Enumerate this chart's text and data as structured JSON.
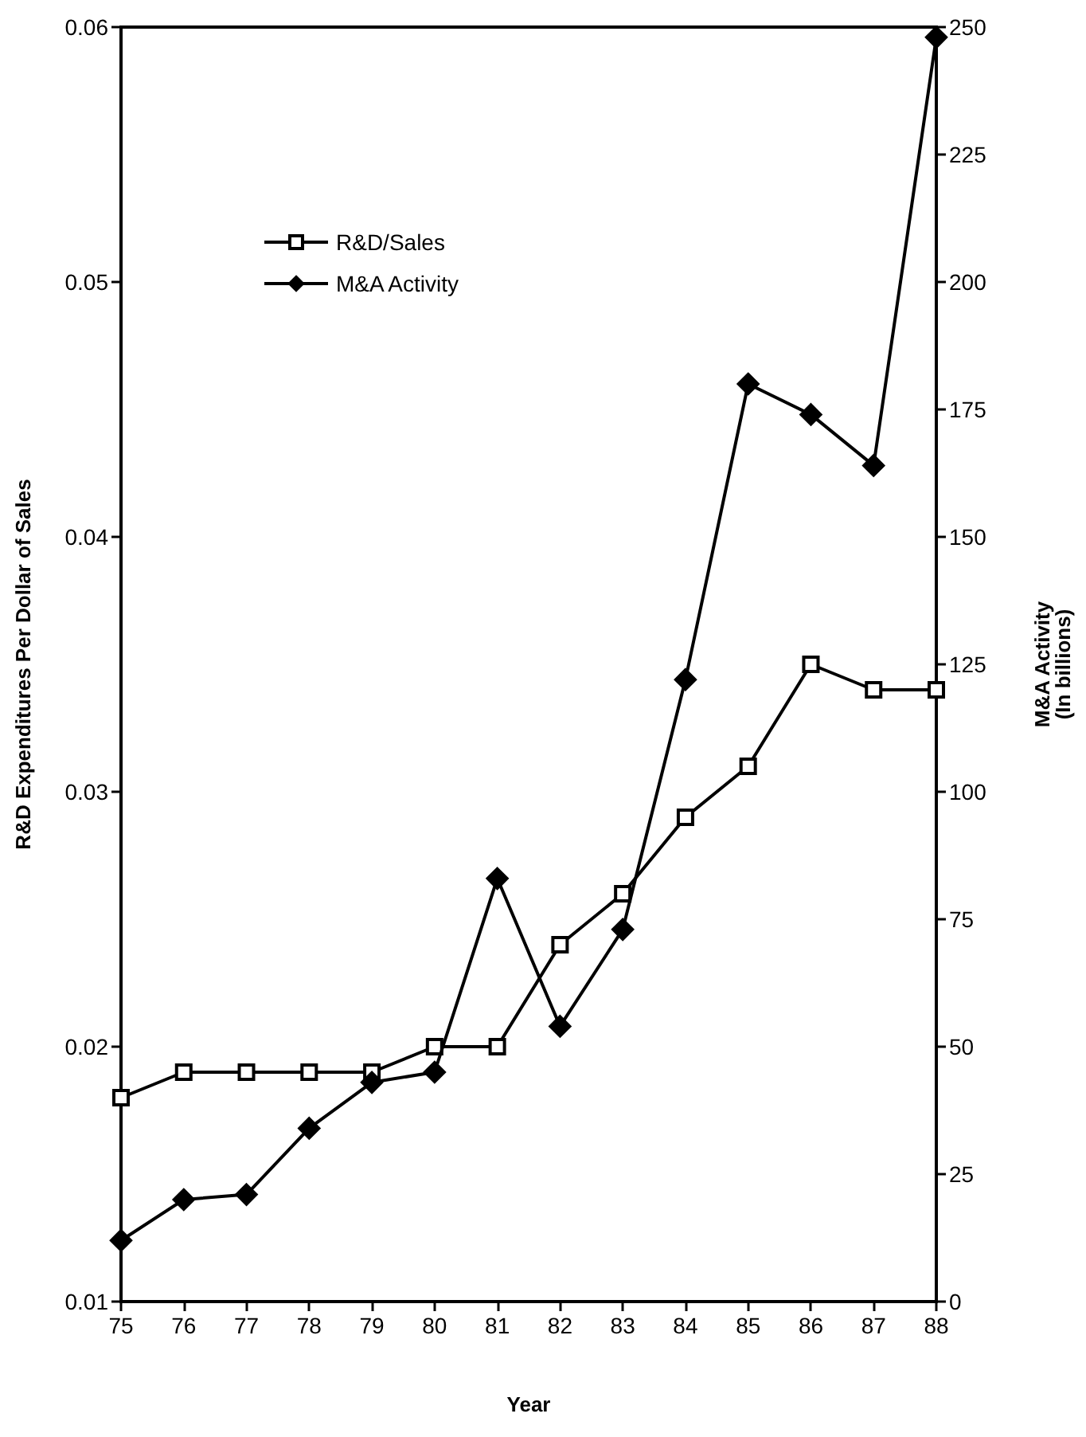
{
  "chart_data": {
    "type": "line",
    "xlabel": "Year",
    "ylabel": "R&D Expenditures Per Dollar of Sales",
    "y2label": "M&A Activity\n(In billions)",
    "x": [
      75,
      76,
      77,
      78,
      79,
      80,
      81,
      82,
      83,
      84,
      85,
      86,
      87,
      88
    ],
    "series": [
      {
        "name": "R&D/Sales",
        "color": "#000000",
        "marker": "square",
        "values": [
          0.018,
          0.019,
          0.019,
          0.019,
          0.019,
          0.02,
          0.02,
          0.024,
          0.026,
          0.029,
          0.031,
          0.035,
          0.034,
          0.034
        ]
      },
      {
        "name": "M&A Activity",
        "color": "#000000",
        "marker": "diamond",
        "axis": "y2",
        "values": [
          12,
          20,
          21,
          34,
          43,
          45,
          83,
          54,
          73,
          122,
          180,
          174,
          164,
          248
        ]
      }
    ],
    "xlim": [
      75,
      88
    ],
    "xticks": [
      75,
      76,
      77,
      78,
      79,
      80,
      81,
      82,
      83,
      84,
      85,
      86,
      87,
      88
    ],
    "ylim": [
      0.01,
      0.06
    ],
    "yticks": [
      0.01,
      0.02,
      0.03,
      0.04,
      0.05,
      0.06
    ],
    "y2lim": [
      0,
      250
    ],
    "y2ticks": [
      0,
      25,
      50,
      75,
      100,
      125,
      150,
      175,
      200,
      225,
      250
    ],
    "grid": false,
    "legend": "top left",
    "line_style": "solid"
  }
}
